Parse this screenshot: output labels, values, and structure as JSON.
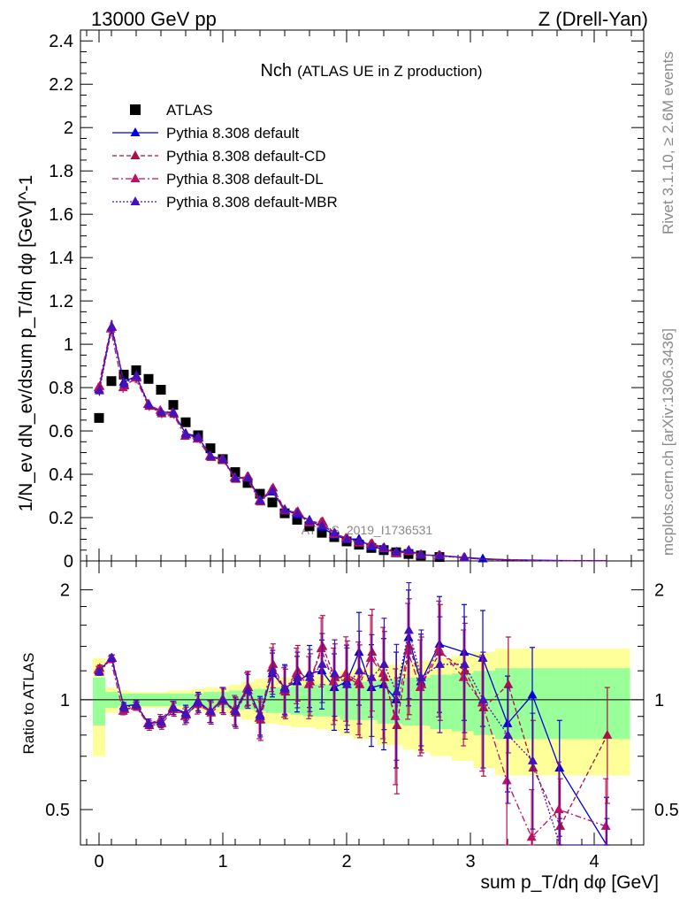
{
  "header": {
    "energy": "13000 GeV pp",
    "process": "Z (Drell-Yan)"
  },
  "plot_title": {
    "main": "Nch",
    "sub": "(ATLAS UE in Z production)"
  },
  "side_labels": {
    "rivet": "Rivet 3.1.10, ≥ 2.6M events",
    "mcplots": "mcplots.cern.ch [arXiv:1306.3436]"
  },
  "watermark": "ATLAS_2019_I1736531",
  "axes": {
    "ylabel_main": "1/N_ev dN_ev/dsum p_T/dη dφ [GeV]^-1",
    "ylabel_ratio": "Ratio to ATLAS",
    "xlabel": "sum p_T/dη dφ [GeV]"
  },
  "colors": {
    "data": "#000000",
    "default": "#0000dd",
    "cd": "#aa1144",
    "dl": "#bb1166",
    "mbr": "#4411bb",
    "band_inner": "#99ff99",
    "band_outer": "#ffff99"
  },
  "chart_data": {
    "type": "scatter",
    "title": "Nch (ATLAS UE in Z production)",
    "xlabel": "sum pT/dη dφ [GeV]",
    "ylabel": "1/Nev dNev/dsum pT/dη dφ [GeV]^-1",
    "xlim": [
      -0.15,
      4.4
    ],
    "ylim": [
      0,
      2.45
    ],
    "ratio_ylim": [
      0.4,
      2.4
    ],
    "x_ticks": [
      0,
      1,
      2,
      3,
      4
    ],
    "y_ticks": [
      0,
      0.2,
      0.4,
      0.6,
      0.8,
      1,
      1.2,
      1.4,
      1.6,
      1.8,
      2,
      2.2,
      2.4
    ],
    "y_tick_labels": [
      "0",
      "0.2",
      "0.4",
      "0.6",
      "0.8",
      "1",
      "1.2",
      "1.4",
      "1.6",
      "1.8",
      "2",
      "2.2",
      "2.4"
    ],
    "ratio_ticks": [
      0.5,
      1,
      2
    ],
    "ratio_tick_labels": [
      "0.5",
      "1",
      "2"
    ],
    "x": [
      0.0,
      0.1,
      0.2,
      0.3,
      0.4,
      0.5,
      0.6,
      0.7,
      0.8,
      0.9,
      1.0,
      1.1,
      1.2,
      1.3,
      1.4,
      1.5,
      1.6,
      1.7,
      1.8,
      1.9,
      2.0,
      2.1,
      2.2,
      2.3,
      2.4,
      2.5,
      2.6,
      2.75,
      2.95,
      3.1,
      3.3,
      3.5,
      3.72,
      4.1
    ],
    "series": [
      {
        "name": "ATLAS",
        "key": "data",
        "values": [
          0.66,
          0.83,
          0.86,
          0.88,
          0.84,
          0.79,
          0.72,
          0.64,
          0.58,
          0.52,
          0.47,
          0.41,
          0.36,
          0.31,
          0.27,
          0.22,
          0.19,
          0.16,
          0.13,
          0.11,
          0.09,
          0.075,
          0.06,
          0.05,
          0.04,
          0.032,
          0.025,
          0.018,
          0.012,
          0.008,
          0.006,
          0.004,
          0.003,
          0.002
        ]
      },
      {
        "name": "Pythia 8.308 default",
        "key": "default",
        "ratio": [
          1.2,
          1.3,
          0.96,
          0.97,
          0.86,
          0.87,
          0.95,
          0.92,
          0.99,
          0.93,
          1.0,
          0.93,
          1.08,
          0.91,
          1.18,
          1.08,
          1.12,
          1.18,
          1.2,
          1.08,
          1.12,
          1.35,
          1.08,
          1.1,
          1.0,
          1.48,
          1.12,
          1.42,
          1.35,
          1.3,
          0.86,
          1.03,
          0.65,
          0.4
        ]
      },
      {
        "name": "Pythia 8.308 default-CD",
        "key": "cd",
        "ratio": [
          1.22,
          1.3,
          0.94,
          0.96,
          0.85,
          0.86,
          0.94,
          0.91,
          0.98,
          0.92,
          0.99,
          0.92,
          1.08,
          0.88,
          1.25,
          1.05,
          1.2,
          1.12,
          1.4,
          1.15,
          1.15,
          1.1,
          1.35,
          1.15,
          0.85,
          1.4,
          1.1,
          1.35,
          1.2,
          0.95,
          1.1,
          0.65,
          0.45,
          0.8
        ]
      },
      {
        "name": "Pythia 8.308 default-DL",
        "key": "dl",
        "ratio": [
          1.21,
          1.29,
          0.93,
          0.96,
          0.86,
          0.88,
          0.95,
          0.9,
          0.97,
          0.93,
          1.0,
          0.94,
          1.07,
          0.89,
          1.22,
          1.06,
          1.18,
          1.1,
          1.38,
          1.12,
          1.18,
          1.12,
          1.3,
          1.18,
          0.9,
          1.36,
          1.08,
          1.38,
          1.15,
          0.98,
          0.6,
          0.42,
          0.5,
          0.45
        ]
      },
      {
        "name": "Pythia 8.308 default-MBR",
        "key": "mbr",
        "ratio": [
          1.19,
          1.3,
          0.95,
          0.97,
          0.86,
          0.87,
          0.95,
          0.91,
          0.98,
          0.93,
          1.0,
          0.93,
          1.06,
          0.9,
          1.2,
          1.07,
          1.15,
          1.15,
          1.25,
          1.18,
          1.1,
          1.2,
          1.15,
          1.25,
          1.05,
          1.55,
          1.15,
          1.25,
          1.25,
          1.0,
          0.8,
          0.68,
          0.35,
          0.35
        ]
      }
    ],
    "bands": {
      "inner": [
        0.15,
        0.05,
        0.04,
        0.04,
        0.04,
        0.04,
        0.04,
        0.04,
        0.04,
        0.05,
        0.05,
        0.06,
        0.06,
        0.07,
        0.08,
        0.08,
        0.09,
        0.1,
        0.1,
        0.1,
        0.12,
        0.12,
        0.12,
        0.14,
        0.14,
        0.15,
        0.15,
        0.17,
        0.18,
        0.2,
        0.22,
        0.22,
        0.22,
        0.22
      ],
      "outer": [
        0.3,
        0.08,
        0.06,
        0.05,
        0.05,
        0.05,
        0.06,
        0.06,
        0.07,
        0.08,
        0.08,
        0.1,
        0.12,
        0.14,
        0.14,
        0.15,
        0.16,
        0.16,
        0.17,
        0.18,
        0.2,
        0.22,
        0.22,
        0.25,
        0.25,
        0.27,
        0.28,
        0.3,
        0.32,
        0.35,
        0.38,
        0.38,
        0.38,
        0.38
      ]
    }
  }
}
